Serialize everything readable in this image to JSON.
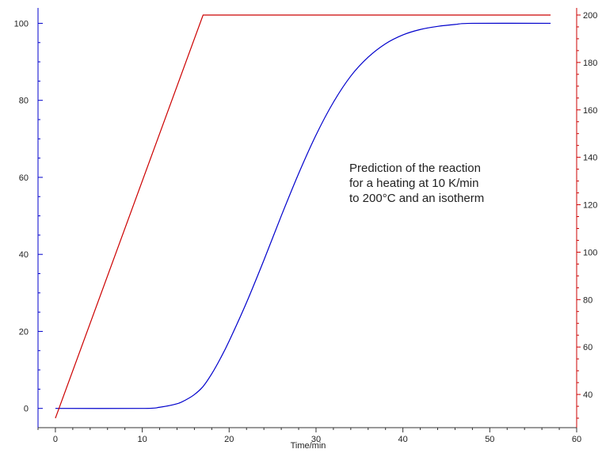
{
  "chart_data": {
    "type": "line",
    "xlabel": "Time/min",
    "ylabel": "",
    "y2label": "",
    "xlim": [
      -2,
      60
    ],
    "ylim": [
      -5,
      104
    ],
    "y2lim": [
      26,
      203
    ],
    "x_ticks": [
      0,
      10,
      20,
      30,
      40,
      50,
      60
    ],
    "x_minor_step": 2,
    "y_ticks": [
      0,
      20,
      40,
      60,
      80,
      100
    ],
    "y_minor_step": 5,
    "y2_ticks": [
      40,
      60,
      80,
      100,
      120,
      140,
      160,
      180,
      200
    ],
    "y2_tick_labels": [
      "40",
      "60",
      "80",
      "100",
      "120",
      "140",
      "160",
      "180",
      "200"
    ],
    "y2_minor_step": 5,
    "grid": false,
    "annotation": [
      "Prediction of the reaction",
      "for a heating at 10 K/min",
      "to 200°C and an isotherm"
    ],
    "series": [
      {
        "axis": "left",
        "color": "#0000cc",
        "points": [
          [
            0,
            0
          ],
          [
            10,
            0
          ],
          [
            12,
            0.3
          ],
          [
            14,
            1.2
          ],
          [
            15,
            2.2
          ],
          [
            16,
            3.6
          ],
          [
            17,
            5.7
          ],
          [
            18,
            9
          ],
          [
            19,
            13
          ],
          [
            20,
            17.5
          ],
          [
            22,
            27.5
          ],
          [
            24,
            38.5
          ],
          [
            26,
            50
          ],
          [
            28,
            61
          ],
          [
            30,
            71
          ],
          [
            32,
            79.5
          ],
          [
            34,
            86.3
          ],
          [
            36,
            91.2
          ],
          [
            38,
            94.7
          ],
          [
            40,
            97
          ],
          [
            42,
            98.4
          ],
          [
            44,
            99.2
          ],
          [
            46,
            99.7
          ],
          [
            48,
            100
          ],
          [
            57,
            100
          ]
        ]
      },
      {
        "axis": "right",
        "color": "#cc0000",
        "points": [
          [
            0,
            30
          ],
          [
            17,
            200
          ],
          [
            57,
            200
          ]
        ]
      }
    ]
  }
}
